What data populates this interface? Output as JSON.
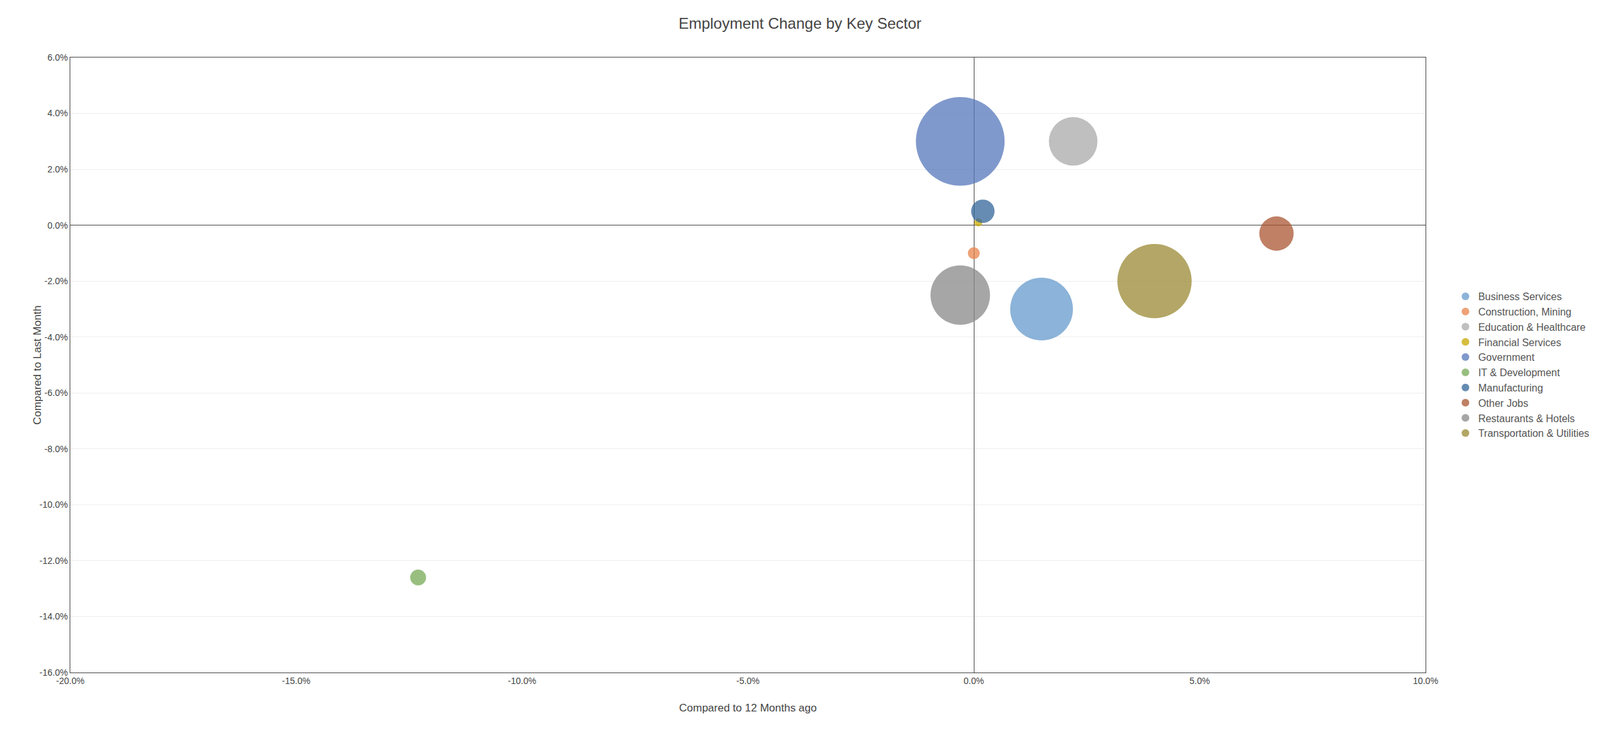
{
  "chart_data": {
    "type": "scatter",
    "marker": "bubble",
    "title": "Employment Change by Key Sector",
    "xlabel": "Compared to 12 Months ago",
    "ylabel": "Compared to Last Month",
    "xlim": [
      -0.2,
      0.1
    ],
    "ylim": [
      -0.16,
      0.06
    ],
    "xticks": [
      {
        "value": -0.2,
        "label": "-20.0%"
      },
      {
        "value": -0.15,
        "label": "-15.0%"
      },
      {
        "value": -0.1,
        "label": "-10.0%"
      },
      {
        "value": -0.05,
        "label": "-5.0%"
      },
      {
        "value": 0.0,
        "label": "0.0%"
      },
      {
        "value": 0.05,
        "label": "5.0%"
      },
      {
        "value": 0.1,
        "label": "10.0%"
      }
    ],
    "yticks": [
      {
        "value": -0.16,
        "label": "-16.0%"
      },
      {
        "value": -0.14,
        "label": "-14.0%"
      },
      {
        "value": -0.12,
        "label": "-12.0%"
      },
      {
        "value": -0.1,
        "label": "-10.0%"
      },
      {
        "value": -0.08,
        "label": "-8.0%"
      },
      {
        "value": -0.06,
        "label": "-6.0%"
      },
      {
        "value": -0.04,
        "label": "-4.0%"
      },
      {
        "value": -0.02,
        "label": "-2.0%"
      },
      {
        "value": 0.0,
        "label": "0.0%"
      },
      {
        "value": 0.02,
        "label": "2.0%"
      },
      {
        "value": 0.04,
        "label": "4.0%"
      },
      {
        "value": 0.06,
        "label": "6.0%"
      }
    ],
    "grid": "y",
    "legend": "right",
    "series": [
      {
        "name": "Business Services",
        "color": "#6699CC",
        "x": [
          0.015
        ],
        "y": [
          -0.03
        ],
        "size": [
          5000
        ]
      },
      {
        "name": "Construction, Mining",
        "color": "#E8834A",
        "x": [
          0.0
        ],
        "y": [
          -0.01
        ],
        "size": [
          180
        ]
      },
      {
        "name": "Education & Healthcare",
        "color": "#AAAAAA",
        "x": [
          0.022
        ],
        "y": [
          0.03
        ],
        "size": [
          3000
        ]
      },
      {
        "name": "Financial Services",
        "color": "#C8A800",
        "x": [
          0.001
        ],
        "y": [
          0.001
        ],
        "size": [
          80
        ]
      },
      {
        "name": "Government",
        "color": "#5577BB",
        "x": [
          -0.003
        ],
        "y": [
          0.03
        ],
        "size": [
          10000
        ]
      },
      {
        "name": "IT & Development",
        "color": "#77AA55",
        "x": [
          -0.123
        ],
        "y": [
          -0.126
        ],
        "size": [
          320
        ]
      },
      {
        "name": "Manufacturing",
        "color": "#336699",
        "x": [
          0.002
        ],
        "y": [
          0.005
        ],
        "size": [
          700
        ]
      },
      {
        "name": "Other Jobs",
        "color": "#AA5533",
        "x": [
          0.067
        ],
        "y": [
          -0.003
        ],
        "size": [
          1500
        ]
      },
      {
        "name": "Restaurants & Hotels",
        "color": "#888888",
        "x": [
          -0.003
        ],
        "y": [
          -0.025
        ],
        "size": [
          4500
        ]
      },
      {
        "name": "Transportation & Utilities",
        "color": "#998833",
        "x": [
          0.04
        ],
        "y": [
          -0.02
        ],
        "size": [
          7000
        ]
      }
    ]
  }
}
